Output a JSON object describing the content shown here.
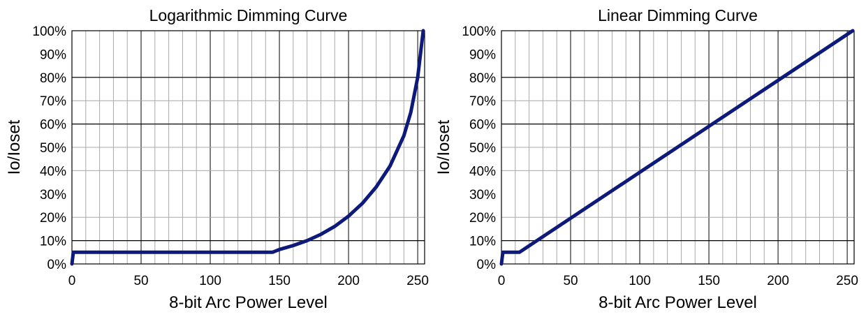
{
  "chart_data": [
    {
      "type": "line",
      "title": "Logarithmic Dimming Curve",
      "xlabel": "8-bit Arc Power Level",
      "ylabel": "Io/Ioset",
      "xlim": [
        0,
        255
      ],
      "ylim": [
        0,
        100
      ],
      "x_ticks": [
        "0",
        "50",
        "100",
        "150",
        "200",
        "250"
      ],
      "y_ticks": [
        "0%",
        "10%",
        "20%",
        "30%",
        "40%",
        "50%",
        "60%",
        "70%",
        "80%",
        "90%",
        "100%"
      ],
      "grid": true,
      "line_color": "#0d1a7a",
      "series": [
        {
          "x": [
            0,
            1,
            145,
            150,
            160,
            170,
            180,
            190,
            200,
            210,
            220,
            230,
            240,
            245,
            250,
            254
          ],
          "y": [
            0,
            5,
            5,
            6.2,
            7.9,
            10,
            12.7,
            16.1,
            20.5,
            26,
            33,
            42,
            55,
            65,
            80,
            100
          ]
        }
      ]
    },
    {
      "type": "line",
      "title": "Linear Dimming Curve",
      "xlabel": "8-bit Arc Power Level",
      "ylabel": "Io/Ioset",
      "xlim": [
        0,
        255
      ],
      "ylim": [
        0,
        100
      ],
      "x_ticks": [
        "0",
        "50",
        "100",
        "150",
        "200",
        "250"
      ],
      "y_ticks": [
        "0%",
        "10%",
        "20%",
        "30%",
        "40%",
        "50%",
        "60%",
        "70%",
        "80%",
        "90%",
        "100%"
      ],
      "grid": true,
      "line_color": "#0d1a7a",
      "series": [
        {
          "x": [
            0,
            1,
            13,
            254
          ],
          "y": [
            0,
            5,
            5,
            100
          ]
        }
      ]
    }
  ]
}
